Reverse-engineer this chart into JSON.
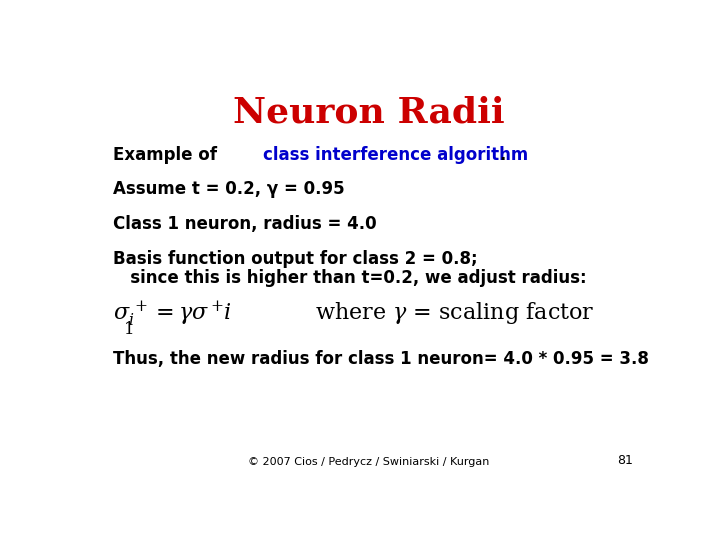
{
  "title": "Neuron Radii",
  "title_color": "#cc0000",
  "title_fontsize": 26,
  "title_fontweight": "bold",
  "background_color": "#ffffff",
  "line1_black1": "Example of ",
  "line1_blue": "class interference algorithm",
  "line1_blue_color": "#0000cc",
  "line1_black2": ".",
  "line2": "Assume t = 0.2, γ = 0.95",
  "line3": "Class 1 neuron, radius = 4.0",
  "line4a": "Basis function output for class 2 = 0.8;",
  "line4b": "   since this is higher than t=0.2, we adjust radius:",
  "line5": "Thus, the new radius for class 1 neuron= 4.0 * 0.95 = 3.8",
  "footer": "© 2007 Cios / Pedrycz / Swiniarski / Kurgan",
  "page_num": "81",
  "text_fontsize": 12,
  "text_fontweight": "bold",
  "formula_fontsize": 16,
  "footer_fontsize": 8
}
